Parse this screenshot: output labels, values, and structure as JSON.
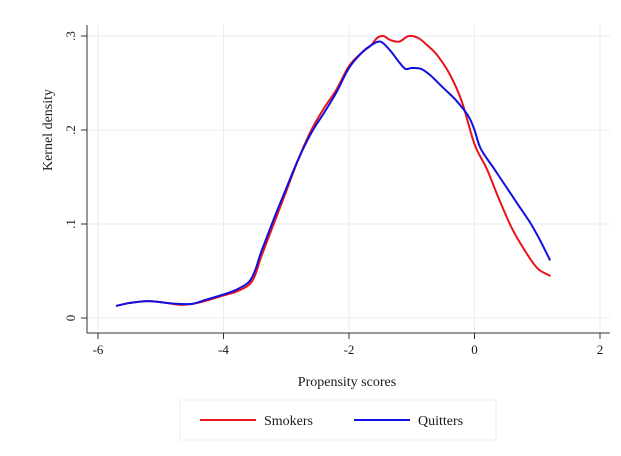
{
  "chart_data": {
    "type": "line",
    "title": "",
    "xlabel": "Propensity scores",
    "ylabel": "Kernel density",
    "xlim": [
      -6,
      2
    ],
    "ylim": [
      0,
      0.3
    ],
    "xticks": [
      -6,
      -4,
      -2,
      0,
      2
    ],
    "xtick_labels": [
      "-6",
      "-4",
      "-2",
      "0",
      "2"
    ],
    "yticks": [
      0,
      0.1,
      0.2,
      0.3
    ],
    "ytick_labels": [
      "0",
      ".1",
      ".2",
      ".3"
    ],
    "grid": "horizontal and vertical",
    "legend_position": "bottom",
    "series": [
      {
        "name": "Smokers",
        "color": "#e8141a",
        "x": [
          -5.7,
          -5.5,
          -5.2,
          -4.9,
          -4.7,
          -4.5,
          -4.3,
          -4.0,
          -3.8,
          -3.6,
          -3.5,
          -3.4,
          -3.2,
          -3.0,
          -2.8,
          -2.6,
          -2.4,
          -2.2,
          -2.0,
          -1.8,
          -1.65,
          -1.55,
          -1.45,
          -1.35,
          -1.2,
          -1.05,
          -0.9,
          -0.75,
          -0.6,
          -0.4,
          -0.2,
          0.0,
          0.2,
          0.4,
          0.6,
          0.8,
          1.0,
          1.2
        ],
        "y": [
          0.013,
          0.016,
          0.018,
          0.016,
          0.014,
          0.015,
          0.018,
          0.024,
          0.028,
          0.035,
          0.045,
          0.065,
          0.1,
          0.135,
          0.17,
          0.2,
          0.223,
          0.243,
          0.268,
          0.282,
          0.29,
          0.298,
          0.3,
          0.296,
          0.294,
          0.3,
          0.298,
          0.29,
          0.28,
          0.26,
          0.23,
          0.185,
          0.158,
          0.125,
          0.095,
          0.072,
          0.053,
          0.045
        ]
      },
      {
        "name": "Quitters",
        "color": "#1010e0",
        "x": [
          -5.7,
          -5.5,
          -5.2,
          -4.9,
          -4.7,
          -4.5,
          -4.3,
          -4.0,
          -3.8,
          -3.6,
          -3.5,
          -3.4,
          -3.2,
          -3.0,
          -2.8,
          -2.6,
          -2.4,
          -2.2,
          -2.0,
          -1.8,
          -1.65,
          -1.5,
          -1.35,
          -1.2,
          -1.1,
          -1.0,
          -0.85,
          -0.7,
          -0.5,
          -0.3,
          -0.1,
          0.0,
          0.1,
          0.3,
          0.5,
          0.7,
          0.9,
          1.05,
          1.2
        ],
        "y": [
          0.013,
          0.016,
          0.018,
          0.016,
          0.015,
          0.015,
          0.019,
          0.025,
          0.03,
          0.038,
          0.05,
          0.07,
          0.105,
          0.138,
          0.17,
          0.197,
          0.218,
          0.24,
          0.266,
          0.282,
          0.29,
          0.294,
          0.285,
          0.272,
          0.265,
          0.266,
          0.265,
          0.258,
          0.245,
          0.232,
          0.215,
          0.2,
          0.18,
          0.16,
          0.14,
          0.12,
          0.1,
          0.082,
          0.062
        ]
      }
    ]
  }
}
